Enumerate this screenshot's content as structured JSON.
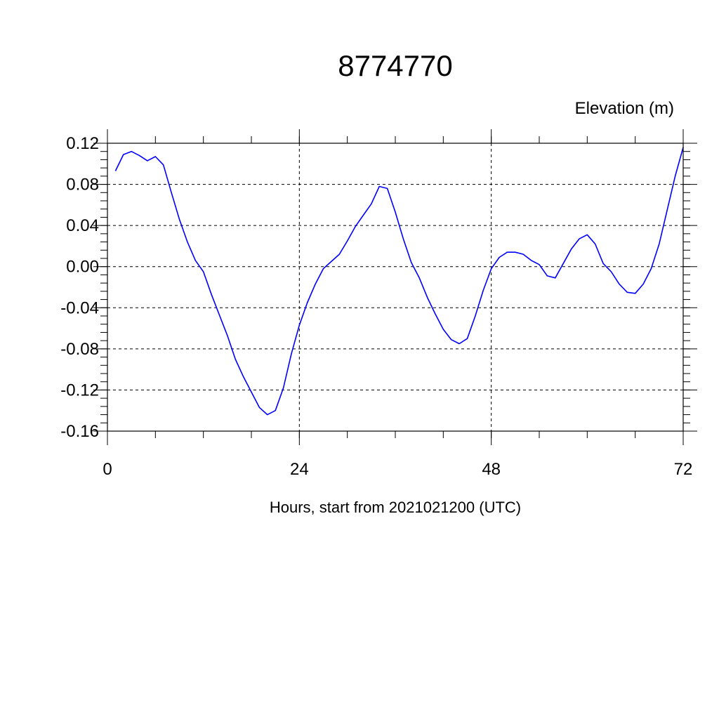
{
  "chart_data": {
    "type": "line",
    "title": "8774770",
    "ylabel": "Elevation (m)",
    "xlabel": "Hours, start from 2021021200 (UTC)",
    "xlim": [
      0,
      72
    ],
    "ylim": [
      -0.16,
      0.12
    ],
    "x_ticks": [
      0,
      24,
      48,
      72
    ],
    "x_tick_labels": [
      "0",
      "24",
      "48",
      "72"
    ],
    "y_ticks": [
      -0.16,
      -0.12,
      -0.08,
      -0.04,
      0.0,
      0.04,
      0.08,
      0.12
    ],
    "y_tick_labels": [
      "-0.16",
      "-0.12",
      "-0.08",
      "-0.04",
      "0.00",
      "0.04",
      "0.08",
      "0.12"
    ],
    "grid": true,
    "line_color": "#0000ff",
    "series": [
      {
        "x": [
          1,
          2,
          3,
          4,
          5,
          6,
          7,
          8,
          9,
          10,
          11,
          12,
          13,
          14,
          15,
          16,
          17,
          18,
          19,
          20,
          21,
          22,
          23,
          24,
          25,
          26,
          27,
          28,
          29,
          30,
          31,
          32,
          33,
          34,
          35,
          36,
          37,
          38,
          39,
          40,
          41,
          42,
          43,
          44,
          45,
          46,
          47,
          48,
          49,
          50,
          51,
          52,
          53,
          54,
          55,
          56,
          57,
          58,
          59,
          60,
          61,
          62,
          63,
          64,
          65,
          66,
          67,
          68,
          69,
          70,
          71,
          72
        ],
        "y": [
          0.093,
          0.109,
          0.112,
          0.108,
          0.103,
          0.107,
          0.099,
          0.072,
          0.046,
          0.024,
          0.006,
          -0.005,
          -0.027,
          -0.047,
          -0.067,
          -0.09,
          -0.107,
          -0.122,
          -0.137,
          -0.144,
          -0.14,
          -0.118,
          -0.085,
          -0.057,
          -0.035,
          -0.017,
          -0.002,
          0.005,
          0.012,
          0.025,
          0.039,
          0.05,
          0.061,
          0.078,
          0.076,
          0.053,
          0.027,
          0.004,
          -0.011,
          -0.03,
          -0.046,
          -0.061,
          -0.071,
          -0.075,
          -0.07,
          -0.048,
          -0.023,
          -0.002,
          0.009,
          0.014,
          0.014,
          0.012,
          0.006,
          0.002,
          -0.009,
          -0.011,
          0.003,
          0.017,
          0.027,
          0.031,
          0.022,
          0.003,
          -0.005,
          -0.017,
          -0.025,
          -0.026,
          -0.017,
          -0.002,
          0.022,
          0.055,
          0.088,
          0.116
        ]
      }
    ]
  }
}
